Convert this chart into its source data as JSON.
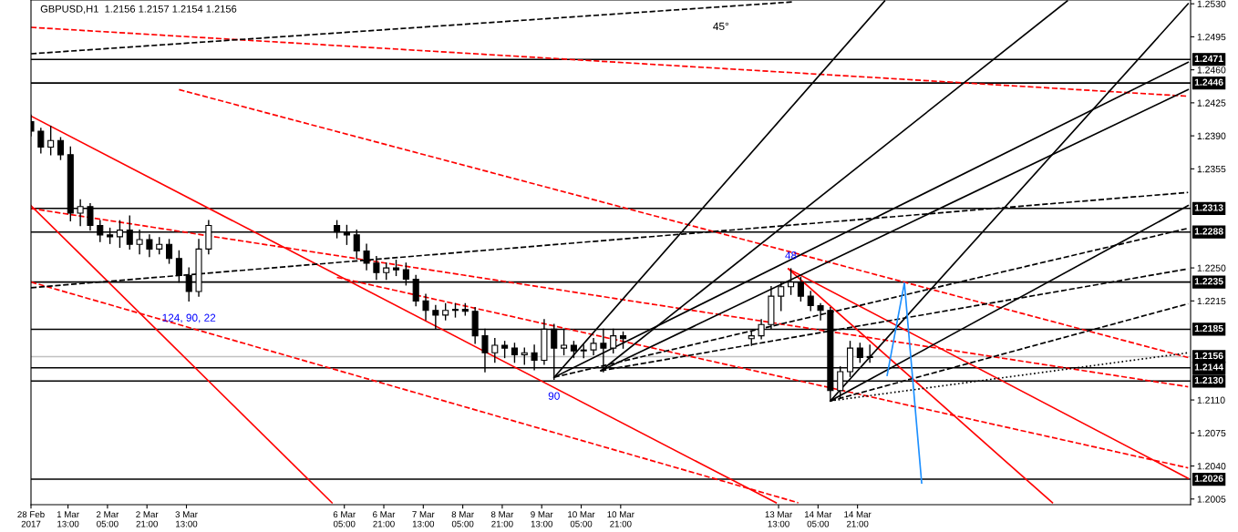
{
  "chart_data": {
    "type": "candlestick",
    "title": "GBPUSD,H1  1.2156 1.2157 1.2154 1.2156",
    "x": [
      "2017-02-28T22:00",
      "2017-03-01T02:00",
      "2017-03-01T06:00",
      "2017-03-01T10:00",
      "2017-03-01T14:00",
      "2017-03-01T18:00",
      "2017-03-01T22:00",
      "2017-03-02T02:00",
      "2017-03-02T06:00",
      "2017-03-02T10:00",
      "2017-03-02T14:00",
      "2017-03-02T18:00",
      "2017-03-02T22:00",
      "2017-03-03T02:00",
      "2017-03-03T06:00",
      "2017-03-03T10:00",
      "2017-03-03T14:00",
      "2017-03-03T18:00",
      "2017-03-03T22:00",
      "2017-03-06T02:00",
      "2017-03-06T06:00",
      "2017-03-06T10:00",
      "2017-03-06T14:00",
      "2017-03-06T18:00",
      "2017-03-06T22:00",
      "2017-03-07T02:00",
      "2017-03-07T06:00",
      "2017-03-07T10:00",
      "2017-03-07T14:00",
      "2017-03-07T18:00",
      "2017-03-07T22:00",
      "2017-03-08T02:00",
      "2017-03-08T06:00",
      "2017-03-08T10:00",
      "2017-03-08T14:00",
      "2017-03-08T18:00",
      "2017-03-08T22:00",
      "2017-03-09T02:00",
      "2017-03-09T06:00",
      "2017-03-09T10:00",
      "2017-03-09T14:00",
      "2017-03-09T18:00",
      "2017-03-09T22:00",
      "2017-03-10T02:00",
      "2017-03-10T06:00",
      "2017-03-10T10:00",
      "2017-03-10T14:00",
      "2017-03-10T18:00",
      "2017-03-10T22:00",
      "2017-03-13T02:00",
      "2017-03-13T06:00",
      "2017-03-13T10:00",
      "2017-03-13T14:00",
      "2017-03-13T18:00",
      "2017-03-13T22:00",
      "2017-03-14T02:00",
      "2017-03-14T06:00",
      "2017-03-14T10:00",
      "2017-03-14T14:00",
      "2017-03-14T18:00",
      "2017-03-14T22:00",
      "2017-03-15T02:00"
    ],
    "ohlc": [
      [
        1.2405,
        1.2412,
        1.239,
        1.2395
      ],
      [
        1.2395,
        1.2398,
        1.2372,
        1.2378
      ],
      [
        1.2378,
        1.24,
        1.237,
        1.2385
      ],
      [
        1.2385,
        1.2388,
        1.2365,
        1.237
      ],
      [
        1.237,
        1.2378,
        1.23,
        1.2308
      ],
      [
        1.2308,
        1.2322,
        1.2295,
        1.2315
      ],
      [
        1.2315,
        1.2318,
        1.229,
        1.2295
      ],
      [
        1.2295,
        1.23,
        1.2278,
        1.2285
      ],
      [
        1.2285,
        1.2292,
        1.2276,
        1.2283
      ],
      [
        1.2283,
        1.23,
        1.2272,
        1.229
      ],
      [
        1.229,
        1.2305,
        1.227,
        1.2275
      ],
      [
        1.2275,
        1.229,
        1.2265,
        1.228
      ],
      [
        1.228,
        1.2285,
        1.2262,
        1.227
      ],
      [
        1.227,
        1.2282,
        1.2265,
        1.2275
      ],
      [
        1.2275,
        1.228,
        1.2255,
        1.226
      ],
      [
        1.226,
        1.2268,
        1.2235,
        1.2242
      ],
      [
        1.2242,
        1.225,
        1.2215,
        1.2225
      ],
      [
        1.2225,
        1.228,
        1.222,
        1.227
      ],
      [
        1.227,
        1.23,
        1.2265,
        1.2295
      ],
      [
        1.2295,
        1.23,
        1.2282,
        1.2288
      ],
      [
        1.2288,
        1.2295,
        1.2275,
        1.2285
      ],
      [
        1.2285,
        1.229,
        1.226,
        1.2268
      ],
      [
        1.2268,
        1.2275,
        1.2248,
        1.2255
      ],
      [
        1.2255,
        1.2262,
        1.2238,
        1.2245
      ],
      [
        1.2245,
        1.2255,
        1.2238,
        1.225
      ],
      [
        1.225,
        1.2258,
        1.2242,
        1.2248
      ],
      [
        1.2248,
        1.2255,
        1.2232,
        1.2238
      ],
      [
        1.2238,
        1.2242,
        1.221,
        1.2215
      ],
      [
        1.2215,
        1.2222,
        1.2195,
        1.2205
      ],
      [
        1.2205,
        1.221,
        1.2185,
        1.22
      ],
      [
        1.22,
        1.2212,
        1.2195,
        1.2205
      ],
      [
        1.2205,
        1.2212,
        1.2198,
        1.2206
      ],
      [
        1.2206,
        1.2212,
        1.22,
        1.2204
      ],
      [
        1.2204,
        1.2208,
        1.217,
        1.2178
      ],
      [
        1.2178,
        1.2185,
        1.214,
        1.216
      ],
      [
        1.216,
        1.2175,
        1.215,
        1.2168
      ],
      [
        1.2168,
        1.2172,
        1.2155,
        1.2165
      ],
      [
        1.2165,
        1.217,
        1.215,
        1.2158
      ],
      [
        1.2158,
        1.2165,
        1.2148,
        1.216
      ],
      [
        1.216,
        1.2168,
        1.2142,
        1.2152
      ],
      [
        1.2152,
        1.2195,
        1.2148,
        1.2185
      ],
      [
        1.2185,
        1.219,
        1.2132,
        1.2165
      ],
      [
        1.2165,
        1.2185,
        1.2158,
        1.2168
      ],
      [
        1.2168,
        1.2172,
        1.2155,
        1.2162
      ],
      [
        1.2162,
        1.2168,
        1.2155,
        1.2163
      ],
      [
        1.2163,
        1.2175,
        1.2158,
        1.217
      ],
      [
        1.217,
        1.2185,
        1.214,
        1.2165
      ],
      [
        1.2165,
        1.2185,
        1.216,
        1.2178
      ],
      [
        1.2178,
        1.2182,
        1.2165,
        1.2175
      ],
      [
        1.2175,
        1.2182,
        1.2168,
        1.2178
      ],
      [
        1.2178,
        1.2195,
        1.2175,
        1.219
      ],
      [
        1.219,
        1.223,
        1.2185,
        1.222
      ],
      [
        1.222,
        1.2235,
        1.2205,
        1.223
      ],
      [
        1.223,
        1.2249,
        1.2222,
        1.2235
      ],
      [
        1.2235,
        1.224,
        1.2215,
        1.222
      ],
      [
        1.222,
        1.2225,
        1.2205,
        1.221
      ],
      [
        1.221,
        1.2212,
        1.2195,
        1.2205
      ],
      [
        1.2205,
        1.2208,
        1.2109,
        1.212
      ],
      [
        1.212,
        1.2145,
        1.2112,
        1.214
      ],
      [
        1.214,
        1.2172,
        1.2135,
        1.2165
      ],
      [
        1.2165,
        1.217,
        1.215,
        1.2155
      ],
      [
        1.2155,
        1.2168,
        1.215,
        1.2156
      ]
    ],
    "color": "#000000",
    "series": [
      {
        "type": "line",
        "x": [
          "2017-02-28T22:00",
          "2017-03-06T00:00"
        ],
        "values": [
          1.2316,
          1.2001
        ],
        "color": "#ff0000",
        "line_style": "solid"
      },
      {
        "type": "line",
        "x": [
          "2017-02-28T22:00",
          "2017-03-13T12:00"
        ],
        "values": [
          1.2411,
          1.2001
        ],
        "color": "#ff0000",
        "line_style": "solid"
      },
      {
        "type": "line",
        "x": [
          "2017-03-13T17:00",
          "2017-03-18T04:00"
        ],
        "values": [
          1.2249,
          1.2001
        ],
        "color": "#ff0000",
        "line_style": "solid"
      },
      {
        "type": "line",
        "x": [
          "2017-03-13T17:00",
          "2017-03-20T11:00"
        ],
        "values": [
          1.2249,
          1.2027
        ],
        "color": "#ff0000",
        "line_style": "solid"
      },
      {
        "type": "line",
        "x": [
          "2017-02-28T22:00",
          "2017-03-20T11:00"
        ],
        "values": [
          1.2505,
          1.2432
        ],
        "color": "#ff0000",
        "line_style": "dashed"
      },
      {
        "type": "line",
        "x": [
          "2017-03-03T10:00",
          "2017-03-20T11:00"
        ],
        "values": [
          1.2439,
          1.2155
        ],
        "color": "#ff0000",
        "line_style": "dashed"
      },
      {
        "type": "line",
        "x": [
          "2017-02-28T22:00",
          "2017-03-20T11:00"
        ],
        "values": [
          1.2313,
          1.2124
        ],
        "color": "#ff0000",
        "line_style": "dashed"
      },
      {
        "type": "line",
        "x": [
          "2017-03-06T02:00",
          "2017-03-20T11:00"
        ],
        "values": [
          1.224,
          1.2038
        ],
        "color": "#ff0000",
        "line_style": "dashed"
      },
      {
        "type": "line",
        "x": [
          "2017-02-28T22:00",
          "2017-03-13T21:00"
        ],
        "values": [
          1.2235,
          1.2001
        ],
        "color": "#ff0000",
        "line_style": "dashed"
      },
      {
        "type": "line",
        "x": [
          "2017-02-28T22:00",
          "2017-03-13T19:00"
        ],
        "values": [
          1.2477,
          1.2532
        ],
        "color": "#000000",
        "line_style": "dashed"
      },
      {
        "type": "line",
        "x": [
          "2017-02-28T22:00",
          "2017-03-20T11:00"
        ],
        "values": [
          1.2229,
          1.233
        ],
        "color": "#000000",
        "line_style": "dashed"
      },
      {
        "type": "line",
        "x": [
          "2017-03-09T18:00",
          "2017-03-15T08:00"
        ],
        "values": [
          1.2134,
          1.2533
        ],
        "color": "#000000",
        "line_style": "solid"
      },
      {
        "type": "line",
        "x": [
          "2017-03-10T13:00",
          "2017-03-18T10:00"
        ],
        "values": [
          1.2141,
          1.2533
        ],
        "color": "#000000",
        "line_style": "solid"
      },
      {
        "type": "line",
        "x": [
          "2017-03-14T10:00",
          "2017-03-20T11:00"
        ],
        "values": [
          1.2109,
          1.253
        ],
        "color": "#000000",
        "line_style": "solid"
      },
      {
        "type": "line",
        "x": [
          "2017-03-09T18:00",
          "2017-03-20T11:00"
        ],
        "values": [
          1.2134,
          1.2468
        ],
        "color": "#000000",
        "line_style": "solid"
      },
      {
        "type": "line",
        "x": [
          "2017-03-10T13:00",
          "2017-03-20T11:00"
        ],
        "values": [
          1.2141,
          1.2439
        ],
        "color": "#000000",
        "line_style": "solid"
      },
      {
        "type": "line",
        "x": [
          "2017-03-14T10:00",
          "2017-03-20T11:00"
        ],
        "values": [
          1.2109,
          1.2316
        ],
        "color": "#000000",
        "line_style": "solid"
      },
      {
        "type": "line",
        "x": [
          "2017-03-09T18:00",
          "2017-03-20T11:00"
        ],
        "values": [
          1.2134,
          1.2292
        ],
        "color": "#000000",
        "line_style": "dashed"
      },
      {
        "type": "line",
        "x": [
          "2017-03-10T13:00",
          "2017-03-20T11:00"
        ],
        "values": [
          1.2141,
          1.2249
        ],
        "color": "#000000",
        "line_style": "dashed"
      },
      {
        "type": "line",
        "x": [
          "2017-03-14T10:00",
          "2017-03-20T11:00"
        ],
        "values": [
          1.2109,
          1.2212
        ],
        "color": "#000000",
        "line_style": "dashed"
      },
      {
        "type": "line",
        "x": [
          "2017-03-14T10:00",
          "2017-03-20T11:00"
        ],
        "values": [
          1.2109,
          1.216
        ],
        "color": "#000000",
        "line_style": "dotted"
      },
      {
        "type": "line",
        "x": [
          "2017-03-15T09:00",
          "2017-03-15T16:00",
          "2017-03-15T23:00"
        ],
        "values": [
          1.2136,
          1.2234,
          1.2022
        ],
        "color": "#1e90ff",
        "line_style": "solid"
      }
    ],
    "ref_lines": [
      {
        "axis": "y",
        "value": 1.2471,
        "label": "1.2471",
        "color": "#000000"
      },
      {
        "axis": "y",
        "value": 1.2446,
        "label": "1.2446",
        "color": "#000000"
      },
      {
        "axis": "y",
        "value": 1.2313,
        "label": "1.2313",
        "color": "#000000"
      },
      {
        "axis": "y",
        "value": 1.2288,
        "label": "1.2288",
        "color": "#000000"
      },
      {
        "axis": "y",
        "value": 1.2235,
        "label": "1.2235",
        "color": "#000000"
      },
      {
        "axis": "y",
        "value": 1.2185,
        "label": "1.2185",
        "color": "#000000"
      },
      {
        "axis": "y",
        "value": 1.2156,
        "label": "1.2156",
        "color": "#c0c0c0"
      },
      {
        "axis": "y",
        "value": 1.2144,
        "label": "1.2144",
        "color": "#000000"
      },
      {
        "axis": "y",
        "value": 1.213,
        "label": "1.2130",
        "color": "#000000"
      },
      {
        "axis": "y",
        "value": 1.2026,
        "label": "1.2026",
        "color": "#000000"
      }
    ],
    "annotations": [
      "45°",
      {
        "text": "124, 90, 22",
        "x": "2017-03-03T14:00",
        "y": 1.2215
      },
      {
        "text": "48",
        "x": "2017-03-13T18:00",
        "y": 1.2249
      },
      {
        "text": "90",
        "x": "2017-03-09T18:00",
        "y": 1.2132
      }
    ],
    "xlim": [
      "2017-02-28T22:00",
      "2017-03-20T12:00"
    ],
    "ylim": [
      1.1999,
      1.2534
    ],
    "xticks": [
      {
        "value": "2017-02-28T22:00",
        "label": "28 Feb 2017"
      },
      {
        "value": "2017-03-01T13:00",
        "label": "1 Mar 13:00"
      },
      {
        "value": "2017-03-02T05:00",
        "label": "2 Mar 05:00"
      },
      {
        "value": "2017-03-02T21:00",
        "label": "2 Mar 21:00"
      },
      {
        "value": "2017-03-03T13:00",
        "label": "3 Mar 13:00"
      },
      {
        "value": "2017-03-06T05:00",
        "label": "6 Mar 05:00"
      },
      {
        "value": "2017-03-06T21:00",
        "label": "6 Mar 21:00"
      },
      {
        "value": "2017-03-07T13:00",
        "label": "7 Mar 13:00"
      },
      {
        "value": "2017-03-08T05:00",
        "label": "8 Mar 05:00"
      },
      {
        "value": "2017-03-08T21:00",
        "label": "8 Mar 21:00"
      },
      {
        "value": "2017-03-09T13:00",
        "label": "9 Mar 13:00"
      },
      {
        "value": "2017-03-10T05:00",
        "label": "10 Mar 05:00"
      },
      {
        "value": "2017-03-10T21:00",
        "label": "10 Mar 21:00"
      },
      {
        "value": "2017-03-13T13:00",
        "label": "13 Mar 13:00"
      },
      {
        "value": "2017-03-14T05:00",
        "label": "14 Mar 05:00"
      },
      {
        "value": "2017-03-14T21:00",
        "label": "14 Mar 21:00"
      }
    ],
    "yticks": [
      {
        "value": 1.253,
        "label": "1.2530"
      },
      {
        "value": 1.2495,
        "label": "1.2495"
      },
      {
        "value": 1.246,
        "label": "1.2460"
      },
      {
        "value": 1.2425,
        "label": "1.2425"
      },
      {
        "value": 1.239,
        "label": "1.2390"
      },
      {
        "value": 1.2355,
        "label": "1.2355"
      },
      {
        "value": 1.225,
        "label": "1.2250"
      },
      {
        "value": 1.2215,
        "label": "1.2215"
      },
      {
        "value": 1.211,
        "label": "1.2110"
      },
      {
        "value": 1.2075,
        "label": "1.2075"
      },
      {
        "value": 1.204,
        "label": "1.2040"
      },
      {
        "value": 1.2005,
        "label": "1.2005"
      }
    ]
  }
}
